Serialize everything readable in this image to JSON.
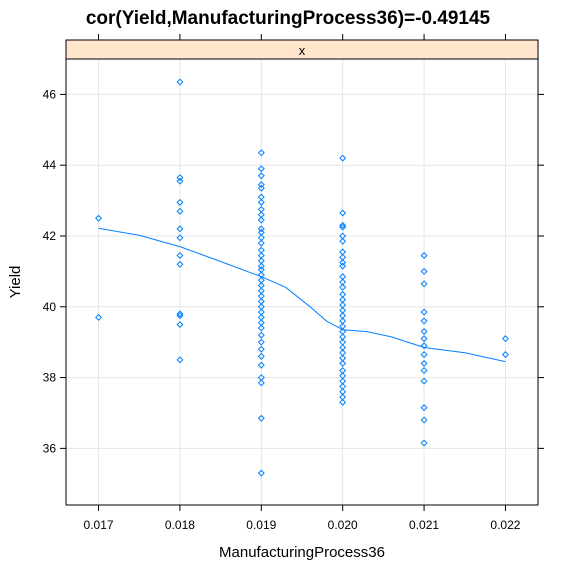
{
  "chart_data": {
    "type": "scatter",
    "title": "cor(Yield,ManufacturingProcess36)=-0.49145",
    "panel_label": "x",
    "xlabel": "ManufacturingProcess36",
    "ylabel": "Yield",
    "xlim": [
      0.0166,
      0.0224
    ],
    "ylim": [
      34.4,
      47.0
    ],
    "x_ticks": [
      0.017,
      0.018,
      0.019,
      0.02,
      0.021,
      0.022
    ],
    "x_tick_labels": [
      "0.017",
      "0.018",
      "0.019",
      "0.020",
      "0.021",
      "0.022"
    ],
    "y_ticks": [
      36,
      38,
      40,
      42,
      44,
      46
    ],
    "y_tick_labels": [
      "36",
      "38",
      "40",
      "42",
      "44",
      "46"
    ],
    "grid": true,
    "colors": {
      "points": "#0080ff",
      "smoother": "#0080ff",
      "strip": "#ffe5cc",
      "grid": "#e6e6e6"
    },
    "points": [
      [
        0.017,
        42.5
      ],
      [
        0.017,
        39.7
      ],
      [
        0.018,
        46.35
      ],
      [
        0.018,
        43.65
      ],
      [
        0.018,
        43.55
      ],
      [
        0.018,
        42.95
      ],
      [
        0.018,
        42.7
      ],
      [
        0.018,
        42.2
      ],
      [
        0.018,
        41.95
      ],
      [
        0.018,
        41.45
      ],
      [
        0.018,
        41.2
      ],
      [
        0.018,
        39.8
      ],
      [
        0.018,
        39.75
      ],
      [
        0.018,
        39.5
      ],
      [
        0.018,
        38.5
      ],
      [
        0.019,
        44.35
      ],
      [
        0.019,
        43.9
      ],
      [
        0.019,
        43.7
      ],
      [
        0.019,
        43.45
      ],
      [
        0.019,
        43.35
      ],
      [
        0.019,
        43.1
      ],
      [
        0.019,
        42.95
      ],
      [
        0.019,
        42.75
      ],
      [
        0.019,
        42.6
      ],
      [
        0.019,
        42.45
      ],
      [
        0.019,
        42.2
      ],
      [
        0.019,
        42.1
      ],
      [
        0.019,
        41.95
      ],
      [
        0.019,
        41.8
      ],
      [
        0.019,
        41.6
      ],
      [
        0.019,
        41.45
      ],
      [
        0.019,
        41.3
      ],
      [
        0.019,
        41.15
      ],
      [
        0.019,
        41.05
      ],
      [
        0.019,
        40.9
      ],
      [
        0.019,
        40.75
      ],
      [
        0.019,
        40.6
      ],
      [
        0.019,
        40.45
      ],
      [
        0.019,
        40.3
      ],
      [
        0.019,
        40.15
      ],
      [
        0.019,
        40.0
      ],
      [
        0.019,
        39.85
      ],
      [
        0.019,
        39.7
      ],
      [
        0.019,
        39.55
      ],
      [
        0.019,
        39.4
      ],
      [
        0.019,
        39.2
      ],
      [
        0.019,
        39.0
      ],
      [
        0.019,
        38.8
      ],
      [
        0.019,
        38.6
      ],
      [
        0.019,
        38.35
      ],
      [
        0.019,
        38.0
      ],
      [
        0.019,
        37.85
      ],
      [
        0.019,
        36.85
      ],
      [
        0.019,
        35.3
      ],
      [
        0.02,
        44.2
      ],
      [
        0.02,
        42.65
      ],
      [
        0.02,
        42.3
      ],
      [
        0.02,
        42.25
      ],
      [
        0.02,
        42.0
      ],
      [
        0.02,
        41.85
      ],
      [
        0.02,
        41.55
      ],
      [
        0.02,
        41.4
      ],
      [
        0.02,
        41.25
      ],
      [
        0.02,
        41.15
      ],
      [
        0.02,
        40.85
      ],
      [
        0.02,
        40.7
      ],
      [
        0.02,
        40.55
      ],
      [
        0.02,
        40.35
      ],
      [
        0.02,
        40.2
      ],
      [
        0.02,
        40.05
      ],
      [
        0.02,
        39.9
      ],
      [
        0.02,
        39.75
      ],
      [
        0.02,
        39.6
      ],
      [
        0.02,
        39.45
      ],
      [
        0.02,
        39.3
      ],
      [
        0.02,
        39.15
      ],
      [
        0.02,
        39.0
      ],
      [
        0.02,
        38.85
      ],
      [
        0.02,
        38.7
      ],
      [
        0.02,
        38.55
      ],
      [
        0.02,
        38.4
      ],
      [
        0.02,
        38.2
      ],
      [
        0.02,
        38.05
      ],
      [
        0.02,
        37.9
      ],
      [
        0.02,
        37.75
      ],
      [
        0.02,
        37.6
      ],
      [
        0.02,
        37.45
      ],
      [
        0.02,
        37.3
      ],
      [
        0.021,
        41.45
      ],
      [
        0.021,
        41.0
      ],
      [
        0.021,
        40.65
      ],
      [
        0.021,
        39.85
      ],
      [
        0.021,
        39.6
      ],
      [
        0.021,
        39.3
      ],
      [
        0.021,
        39.1
      ],
      [
        0.021,
        38.9
      ],
      [
        0.021,
        38.65
      ],
      [
        0.021,
        38.4
      ],
      [
        0.021,
        38.2
      ],
      [
        0.021,
        37.9
      ],
      [
        0.021,
        37.15
      ],
      [
        0.021,
        36.8
      ],
      [
        0.021,
        36.15
      ],
      [
        0.022,
        39.1
      ],
      [
        0.022,
        38.65
      ]
    ],
    "smoother": [
      [
        0.017,
        42.22
      ],
      [
        0.0175,
        42.02
      ],
      [
        0.018,
        41.7
      ],
      [
        0.0185,
        41.28
      ],
      [
        0.019,
        40.85
      ],
      [
        0.0193,
        40.55
      ],
      [
        0.0196,
        40.0
      ],
      [
        0.0198,
        39.6
      ],
      [
        0.02,
        39.35
      ],
      [
        0.0203,
        39.3
      ],
      [
        0.0206,
        39.15
      ],
      [
        0.021,
        38.85
      ],
      [
        0.0215,
        38.7
      ],
      [
        0.022,
        38.45
      ]
    ]
  }
}
